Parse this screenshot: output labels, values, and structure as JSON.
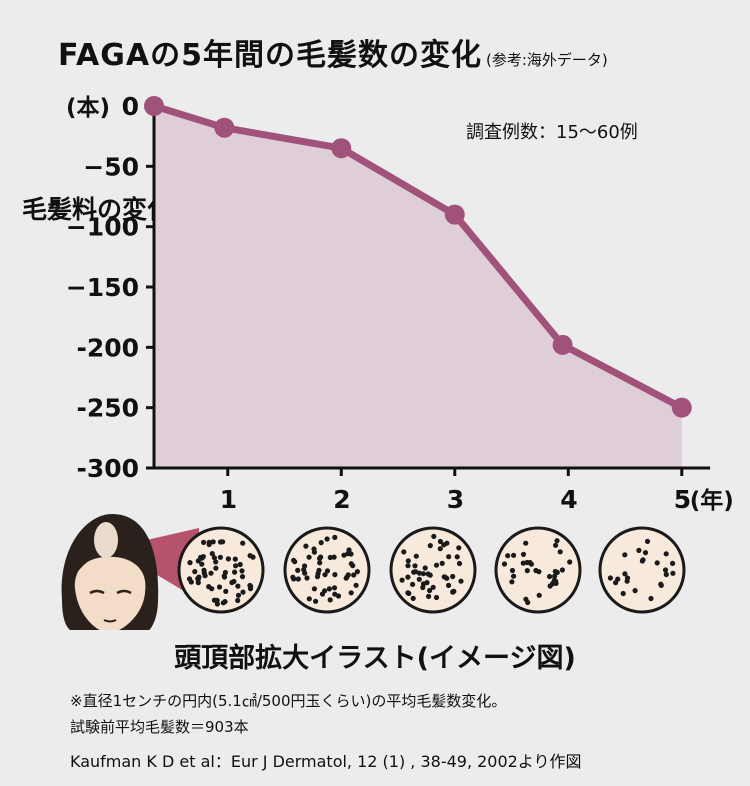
{
  "title": {
    "main": "FAGAの5年間の毛髪数の変化",
    "sub": "(参考:海外データ)"
  },
  "y_axis_label": "毛髪料の変化※",
  "y_unit_label": "(本)",
  "sample_note": "調査例数：15〜60例",
  "x_unit_label": "(年)",
  "illustration": {
    "caption": "頭頂部拡大イラスト(イメージ図)",
    "density_circles": [
      {
        "dot_density": 1.0
      },
      {
        "dot_density": 0.85
      },
      {
        "dot_density": 0.78
      },
      {
        "dot_density": 0.55
      },
      {
        "dot_density": 0.38
      }
    ]
  },
  "footnotes": {
    "line1": "※直径1センチの円内(5.1㎠/500円玉くらい)の平均毛髪数変化。",
    "line2": "試験前平均毛髪数＝903本"
  },
  "source": "Kaufman K D et al：Eur J Dermatol, 12 (1) , 38-49, 2002より作図",
  "colors": {
    "line": "#a0527a",
    "fill": "#dfcdd8",
    "axis": "#111111",
    "background": "#ececec",
    "scalp_circle": "#f7e9dc",
    "dot": "#1a1a1a"
  },
  "chart_data": {
    "type": "area",
    "x": [
      0,
      0.62,
      1.65,
      2.65,
      3.6,
      4.65
    ],
    "y": [
      0,
      -18,
      -35,
      -90,
      -198,
      -250
    ],
    "x_ticks": [
      1,
      2,
      3,
      4,
      5
    ],
    "y_ticks": [
      0,
      -50,
      -100,
      -150,
      -200,
      -250,
      -300
    ],
    "y_tick_labels": [
      "0",
      "−50",
      "−100",
      "−150",
      "-200",
      "-250",
      "-300"
    ],
    "xlim": [
      0,
      4.9
    ],
    "ylim": [
      -300,
      0
    ],
    "grid": false
  }
}
